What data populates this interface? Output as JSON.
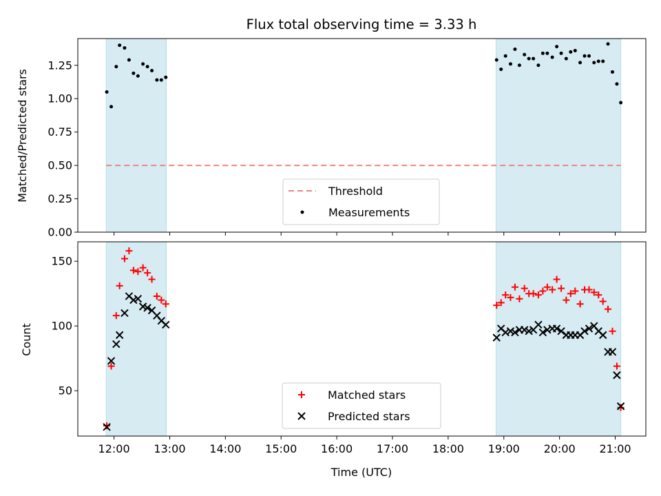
{
  "chart_data": [
    {
      "type": "scatter",
      "title": "Flux total observing time = 3.33 h",
      "ylabel": "Matched/Predicted stars",
      "xlabel": "",
      "ylim": [
        0.0,
        1.45
      ],
      "yticks": [
        0.0,
        0.25,
        0.5,
        0.75,
        1.0,
        1.25
      ],
      "ytick_labels": [
        "0.00",
        "0.25",
        "0.50",
        "0.75",
        "1.00",
        "1.25"
      ],
      "x_unit": "hours UTC",
      "xlim": [
        11.35,
        21.55
      ],
      "shaded_intervals": [
        [
          11.86,
          12.94
        ],
        [
          18.86,
          21.1
        ]
      ],
      "shade_color": "#add8e6",
      "threshold": {
        "name": "Threshold",
        "value": 0.5,
        "color": "#f08080"
      },
      "legend": "lower center",
      "series": [
        {
          "name": "Measurements",
          "color": "#000000",
          "x": [
            11.87,
            11.95,
            12.04,
            12.1,
            12.19,
            12.27,
            12.35,
            12.43,
            12.52,
            12.6,
            12.68,
            12.77,
            12.85,
            12.93,
            18.87,
            18.95,
            19.03,
            19.12,
            19.2,
            19.28,
            19.37,
            19.45,
            19.53,
            19.62,
            19.7,
            19.78,
            19.87,
            19.95,
            20.03,
            20.12,
            20.2,
            20.28,
            20.37,
            20.45,
            20.53,
            20.62,
            20.7,
            20.78,
            20.87,
            20.95,
            21.03,
            21.1
          ],
          "y": [
            1.05,
            0.94,
            1.24,
            1.4,
            1.38,
            1.29,
            1.19,
            1.17,
            1.26,
            1.24,
            1.21,
            1.14,
            1.14,
            1.16,
            1.29,
            1.22,
            1.32,
            1.26,
            1.37,
            1.25,
            1.33,
            1.3,
            1.3,
            1.25,
            1.34,
            1.34,
            1.31,
            1.39,
            1.34,
            1.3,
            1.35,
            1.36,
            1.27,
            1.32,
            1.32,
            1.27,
            1.28,
            1.28,
            1.41,
            1.2,
            1.11,
            0.97
          ]
        }
      ]
    },
    {
      "type": "scatter",
      "title": "",
      "ylabel": "Count",
      "xlabel": "Time (UTC)",
      "ylim": [
        15,
        165
      ],
      "yticks": [
        50,
        100,
        150
      ],
      "ytick_labels": [
        "50",
        "100",
        "150"
      ],
      "x_unit": "hours UTC",
      "xlim": [
        11.35,
        21.55
      ],
      "xticks": [
        12,
        13,
        14,
        15,
        16,
        17,
        18,
        19,
        20,
        21
      ],
      "xtick_labels": [
        "12:00",
        "13:00",
        "14:00",
        "15:00",
        "16:00",
        "17:00",
        "18:00",
        "19:00",
        "20:00",
        "21:00"
      ],
      "shaded_intervals": [
        [
          11.86,
          12.94
        ],
        [
          18.86,
          21.1
        ]
      ],
      "shade_color": "#add8e6",
      "legend": "lower center",
      "series": [
        {
          "name": "Matched stars",
          "marker": "plus",
          "color": "#ff0000",
          "x": [
            11.87,
            11.95,
            12.04,
            12.1,
            12.19,
            12.27,
            12.35,
            12.43,
            12.52,
            12.6,
            12.68,
            12.77,
            12.85,
            12.93,
            18.87,
            18.95,
            19.03,
            19.12,
            19.2,
            19.28,
            19.37,
            19.45,
            19.53,
            19.62,
            19.7,
            19.78,
            19.87,
            19.95,
            20.03,
            20.12,
            20.2,
            20.28,
            20.37,
            20.45,
            20.53,
            20.62,
            20.7,
            20.78,
            20.87,
            20.95,
            21.03,
            21.1
          ],
          "y": [
            23,
            69,
            108,
            131,
            152,
            158,
            143,
            142,
            145,
            141,
            136,
            123,
            120,
            117,
            116,
            118,
            124,
            122,
            130,
            121,
            129,
            125,
            125,
            124,
            127,
            130,
            128,
            136,
            129,
            120,
            125,
            127,
            117,
            128,
            128,
            126,
            124,
            119,
            113,
            96,
            69,
            37
          ]
        },
        {
          "name": "Predicted stars",
          "marker": "x",
          "color": "#000000",
          "x": [
            11.87,
            11.95,
            12.04,
            12.1,
            12.19,
            12.27,
            12.35,
            12.43,
            12.52,
            12.6,
            12.68,
            12.77,
            12.85,
            12.93,
            18.87,
            18.95,
            19.03,
            19.12,
            19.2,
            19.28,
            19.37,
            19.45,
            19.53,
            19.62,
            19.7,
            19.78,
            19.87,
            19.95,
            20.03,
            20.12,
            20.2,
            20.28,
            20.37,
            20.45,
            20.53,
            20.62,
            20.7,
            20.78,
            20.87,
            20.95,
            21.03,
            21.1
          ],
          "y": [
            22,
            73,
            86,
            93,
            110,
            123,
            120,
            121,
            115,
            114,
            112,
            108,
            104,
            101,
            91,
            98,
            95,
            96,
            95,
            97,
            97,
            96,
            97,
            101,
            95,
            97,
            98,
            98,
            96,
            93,
            93,
            93,
            93,
            96,
            98,
            100,
            96,
            93,
            80,
            80,
            62,
            38
          ]
        }
      ]
    }
  ]
}
